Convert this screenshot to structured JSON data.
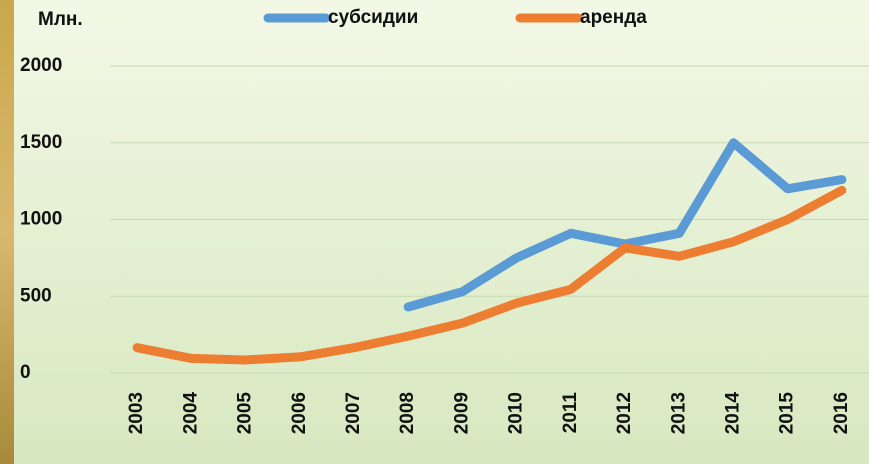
{
  "chart_data": {
    "type": "line",
    "y_label": "Млн.",
    "categories": [
      "2003",
      "2004",
      "2005",
      "2006",
      "2007",
      "2008",
      "2009",
      "2010",
      "2011",
      "2012",
      "2013",
      "2014",
      "2015",
      "2016"
    ],
    "series": [
      {
        "name": "субсидии",
        "color": "#5b9bd5",
        "values": [
          null,
          null,
          null,
          null,
          null,
          430,
          530,
          750,
          910,
          840,
          910,
          1500,
          1200,
          1260
        ]
      },
      {
        "name": "аренда",
        "color": "#ed7d31",
        "values": [
          165,
          95,
          85,
          105,
          165,
          240,
          325,
          455,
          545,
          815,
          760,
          855,
          1000,
          1190
        ]
      }
    ],
    "ylim": [
      0,
      2000
    ],
    "yticks": [
      0,
      500,
      1000,
      1500,
      2000
    ],
    "grid": true
  }
}
